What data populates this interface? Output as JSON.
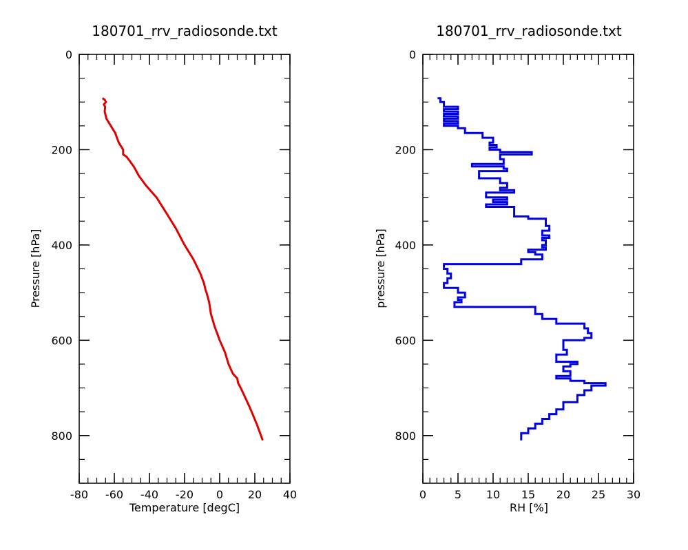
{
  "chart_data": [
    {
      "type": "line",
      "title": "180701_rrv_radiosonde.txt",
      "xlabel": "Temperature [degC]",
      "ylabel": "Pressure [hPa]",
      "xlim": [
        -80,
        40
      ],
      "ylim": [
        0,
        900
      ],
      "y_inverted": true,
      "xticks": [
        -80,
        -60,
        -40,
        -20,
        0,
        20,
        40
      ],
      "yticks": [
        0,
        200,
        400,
        600,
        800
      ],
      "x_minor_step": 5,
      "y_minor_step": 50,
      "color": "#e00000",
      "series": [
        {
          "x": [
            -66.8,
            -65.5,
            -64.8,
            -66.0,
            -65.2,
            -65.5,
            -64.5,
            -62.0,
            -59.5,
            -58.0,
            -57.5,
            -55.0,
            -55.0,
            -53.0,
            -49.0,
            -46.0,
            -42.0,
            -36.0,
            -30.0,
            -25.0,
            -20.0,
            -15.0,
            -11.0,
            -9.0,
            -8.0,
            -7.5,
            -6.0,
            -5.0,
            -3.0,
            0.0,
            3.0,
            5.0,
            7.5,
            10.0,
            10.5,
            12.0,
            17.0,
            21.0,
            24.5
          ],
          "y": [
            92,
            95,
            100,
            105,
            110,
            120,
            135,
            150,
            165,
            180,
            185,
            200,
            210,
            215,
            235,
            255,
            275,
            300,
            335,
            365,
            400,
            430,
            460,
            480,
            495,
            500,
            520,
            545,
            570,
            600,
            625,
            650,
            670,
            680,
            690,
            700,
            740,
            775,
            810
          ]
        }
      ]
    },
    {
      "type": "line",
      "title": "180701_rrv_radiosonde.txt",
      "xlabel": "RH [%]",
      "ylabel": "pressure [hPa]",
      "xlim": [
        0,
        30
      ],
      "ylim": [
        0,
        900
      ],
      "y_inverted": true,
      "xticks": [
        0,
        5,
        10,
        15,
        20,
        25,
        30
      ],
      "yticks": [
        0,
        200,
        400,
        600,
        800
      ],
      "x_minor_step": 1,
      "y_minor_step": 50,
      "color": "#0000e6",
      "series": [
        {
          "x": [
            2.1,
            2.5,
            3.0,
            5.0,
            3.0,
            5.0,
            3.0,
            5.0,
            3.0,
            5.0,
            3.0,
            5.0,
            6.0,
            8.5,
            10.0,
            9.5,
            10.5,
            9.5,
            11.0,
            15.5,
            11.0,
            11.5,
            7.0,
            11.5,
            12.0,
            8.0,
            11.0,
            12.0,
            11.0,
            13.0,
            9.0,
            12.0,
            10.0,
            12.0,
            9.0,
            13.0,
            15.0,
            17.5,
            18.0,
            17.0,
            18.0,
            17.0,
            17.5,
            17.0,
            17.5,
            15.0,
            16.0,
            17.0,
            14.0,
            3.0,
            3.5,
            4.0,
            3.5,
            3.0,
            5.0,
            6.0,
            5.0,
            5.5,
            4.5,
            16.0,
            17.0,
            19.0,
            23.0,
            23.5,
            24.0,
            23.0,
            20.0,
            20.5,
            19.0,
            22.0,
            21.0,
            20.0,
            21.0,
            19.0,
            21.0,
            23.0,
            26.0,
            24.0,
            23.0,
            22.0,
            20.0,
            19.0,
            18.0,
            17.0,
            16.0,
            15.0,
            14.0
          ],
          "y": [
            92,
            100,
            110,
            115,
            120,
            125,
            130,
            135,
            140,
            145,
            150,
            155,
            165,
            175,
            185,
            190,
            195,
            200,
            205,
            210,
            220,
            230,
            235,
            240,
            245,
            260,
            270,
            280,
            285,
            290,
            300,
            305,
            310,
            315,
            320,
            340,
            345,
            360,
            370,
            380,
            385,
            390,
            400,
            405,
            410,
            415,
            420,
            430,
            440,
            450,
            460,
            470,
            480,
            490,
            500,
            510,
            515,
            520,
            530,
            545,
            555,
            565,
            575,
            585,
            595,
            600,
            620,
            630,
            645,
            650,
            655,
            665,
            675,
            680,
            685,
            690,
            695,
            705,
            715,
            730,
            745,
            755,
            765,
            775,
            785,
            795,
            810
          ]
        }
      ]
    }
  ]
}
